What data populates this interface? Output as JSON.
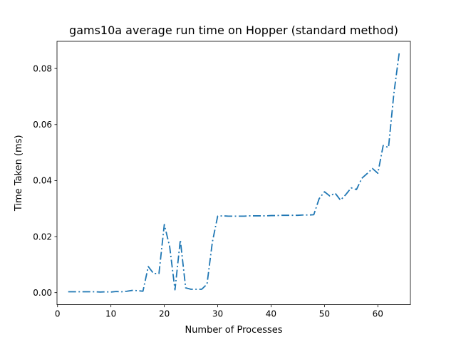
{
  "chart_data": {
    "type": "line",
    "title": "gams10a average run time on Hopper (standard method)",
    "xlabel": "Number of Processes",
    "ylabel": "Time Taken (ms)",
    "xlim": [
      -0.1,
      66.1
    ],
    "ylim": [
      -0.0043,
      0.0897
    ],
    "xticks": [
      0,
      10,
      20,
      30,
      40,
      50,
      60
    ],
    "yticks": [
      0.0,
      0.02,
      0.04,
      0.06,
      0.08
    ],
    "xtick_labels": [
      "0",
      "10",
      "20",
      "30",
      "40",
      "50",
      "60"
    ],
    "ytick_labels": [
      "0.00",
      "0.02",
      "0.04",
      "0.06",
      "0.08"
    ],
    "grid": false,
    "series": [
      {
        "color": "#1f77b4",
        "linestyle": "dashdot",
        "x": [
          2,
          3,
          4,
          5,
          6,
          7,
          8,
          9,
          10,
          11,
          12,
          13,
          14,
          15,
          16,
          17,
          18,
          19,
          20,
          21,
          22,
          23,
          24,
          25,
          26,
          27,
          28,
          29,
          30,
          31,
          32,
          33,
          34,
          35,
          36,
          37,
          38,
          39,
          40,
          41,
          42,
          43,
          44,
          45,
          46,
          47,
          48,
          49,
          50,
          51,
          52,
          53,
          54,
          55,
          56,
          57,
          58,
          59,
          60,
          61,
          62,
          63,
          64
        ],
        "y": [
          0.0003,
          0.0003,
          0.0003,
          0.0003,
          0.0003,
          0.0003,
          0.0002,
          0.0003,
          0.0002,
          0.0004,
          0.0003,
          0.0005,
          0.0008,
          0.0007,
          0.0005,
          0.0093,
          0.0068,
          0.0068,
          0.0243,
          0.0165,
          0.001,
          0.0188,
          0.0017,
          0.0012,
          0.0012,
          0.0012,
          0.003,
          0.018,
          0.0273,
          0.0274,
          0.0273,
          0.0273,
          0.0273,
          0.0273,
          0.0274,
          0.0274,
          0.0274,
          0.0274,
          0.0275,
          0.0275,
          0.0276,
          0.0276,
          0.0276,
          0.0276,
          0.0277,
          0.0277,
          0.0278,
          0.0335,
          0.036,
          0.0345,
          0.0355,
          0.033,
          0.035,
          0.0374,
          0.0368,
          0.0408,
          0.0425,
          0.0443,
          0.0426,
          0.0525,
          0.0518,
          0.071,
          0.0855
        ]
      }
    ]
  }
}
